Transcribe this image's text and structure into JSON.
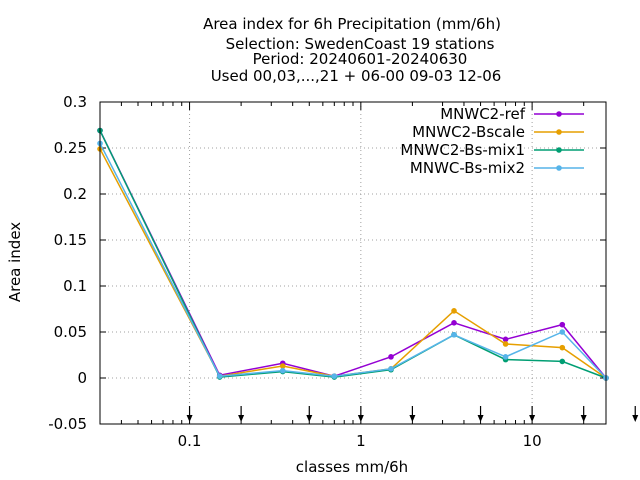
{
  "chart_data": {
    "type": "line",
    "title_lines": [
      "Area index  for 6h Precipitation (mm/6h)",
      "Selection: SwedenCoast     19 stations",
      "Period: 20240601-20240630",
      "Used 00,03,...,21 + 06-00 09-03 12-06"
    ],
    "xlabel": "classes mm/6h",
    "ylabel": "Area index",
    "x_scale": "log",
    "xlim": [
      0.03,
      27
    ],
    "ylim": [
      -0.05,
      0.3
    ],
    "x_ticks": [
      0.1,
      1,
      10
    ],
    "x_tick_labels": [
      "0.1",
      "1",
      "10"
    ],
    "y_ticks": [
      -0.05,
      0,
      0.05,
      0.1,
      0.15,
      0.2,
      0.25,
      0.3
    ],
    "y_tick_labels": [
      "-0.05",
      "0",
      "0.05",
      "0.1",
      "0.15",
      "0.2",
      "0.25",
      "0.3"
    ],
    "grid": true,
    "legend_position": "top-right",
    "class_markers": [
      0.1,
      0.2,
      0.5,
      1,
      2,
      5,
      10,
      20,
      40
    ],
    "x": [
      0.03,
      0.15,
      0.35,
      0.7,
      1.5,
      3.5,
      7,
      15,
      27
    ],
    "series": [
      {
        "name": "MNWC2-ref",
        "color": "#9400d3",
        "values": [
          0.269,
          0.003,
          0.016,
          0.002,
          0.023,
          0.06,
          0.042,
          0.058,
          0.0
        ]
      },
      {
        "name": "MNWC2-Bscale",
        "color": "#e69f00",
        "values": [
          0.249,
          0.002,
          0.013,
          0.002,
          0.01,
          0.073,
          0.037,
          0.033,
          0.0
        ]
      },
      {
        "name": "MNWC2-Bs-mix1",
        "color": "#009e73",
        "values": [
          0.269,
          0.001,
          0.007,
          0.001,
          0.009,
          0.047,
          0.02,
          0.018,
          0.0
        ]
      },
      {
        "name": "MNWC-Bs-mix2",
        "color": "#56b4e9",
        "values": [
          0.255,
          0.002,
          0.008,
          0.002,
          0.01,
          0.047,
          0.023,
          0.05,
          0.0
        ]
      }
    ]
  }
}
